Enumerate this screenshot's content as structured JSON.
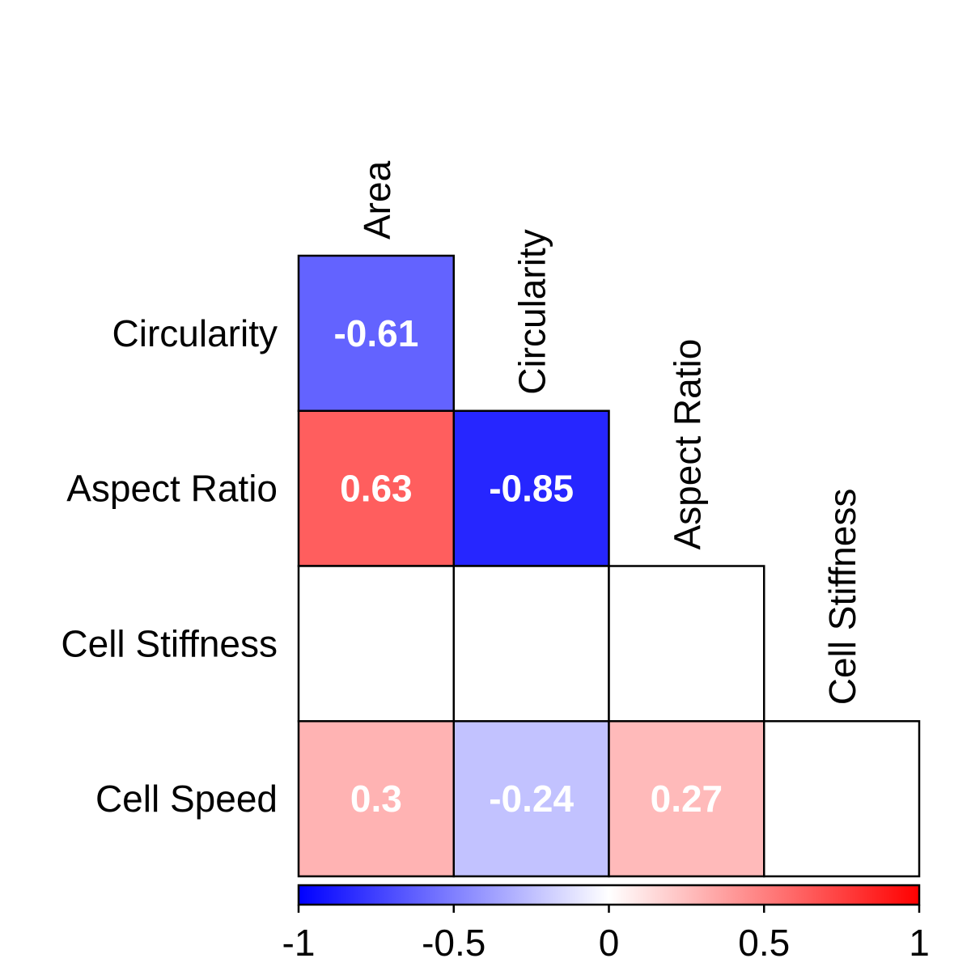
{
  "chart_data": {
    "type": "heatmap",
    "variables": [
      "Area",
      "Circularity",
      "Aspect Ratio",
      "Cell Stiffness",
      "Cell Speed"
    ],
    "row_labels": [
      "Circularity",
      "Aspect Ratio",
      "Cell Stiffness",
      "Cell Speed"
    ],
    "column_labels": [
      "Area",
      "Circularity",
      "Aspect Ratio",
      "Cell Stiffness"
    ],
    "layout": "lower-triangle",
    "cells": [
      {
        "row": "Circularity",
        "col": "Area",
        "value": -0.61,
        "label": "-0.61"
      },
      {
        "row": "Aspect Ratio",
        "col": "Area",
        "value": 0.63,
        "label": "0.63"
      },
      {
        "row": "Aspect Ratio",
        "col": "Circularity",
        "value": -0.85,
        "label": "-0.85"
      },
      {
        "row": "Cell Stiffness",
        "col": "Area",
        "value": null,
        "label": ""
      },
      {
        "row": "Cell Stiffness",
        "col": "Circularity",
        "value": null,
        "label": ""
      },
      {
        "row": "Cell Stiffness",
        "col": "Aspect Ratio",
        "value": null,
        "label": ""
      },
      {
        "row": "Cell Speed",
        "col": "Area",
        "value": 0.3,
        "label": "0.3"
      },
      {
        "row": "Cell Speed",
        "col": "Circularity",
        "value": -0.24,
        "label": "-0.24"
      },
      {
        "row": "Cell Speed",
        "col": "Aspect Ratio",
        "value": 0.27,
        "label": "0.27"
      },
      {
        "row": "Cell Speed",
        "col": "Cell Stiffness",
        "value": null,
        "label": ""
      }
    ],
    "colorbar": {
      "range": [
        -1,
        1
      ],
      "ticks": [
        -1,
        -0.5,
        0,
        0.5,
        1
      ],
      "tick_labels": [
        "-1",
        "-0.5",
        "0",
        "0.5",
        "1"
      ],
      "colors": {
        "low": "#0000ff",
        "mid": "#ffffff",
        "high": "#ff0000"
      },
      "placement": "bottom"
    },
    "title": "",
    "legend": false
  }
}
